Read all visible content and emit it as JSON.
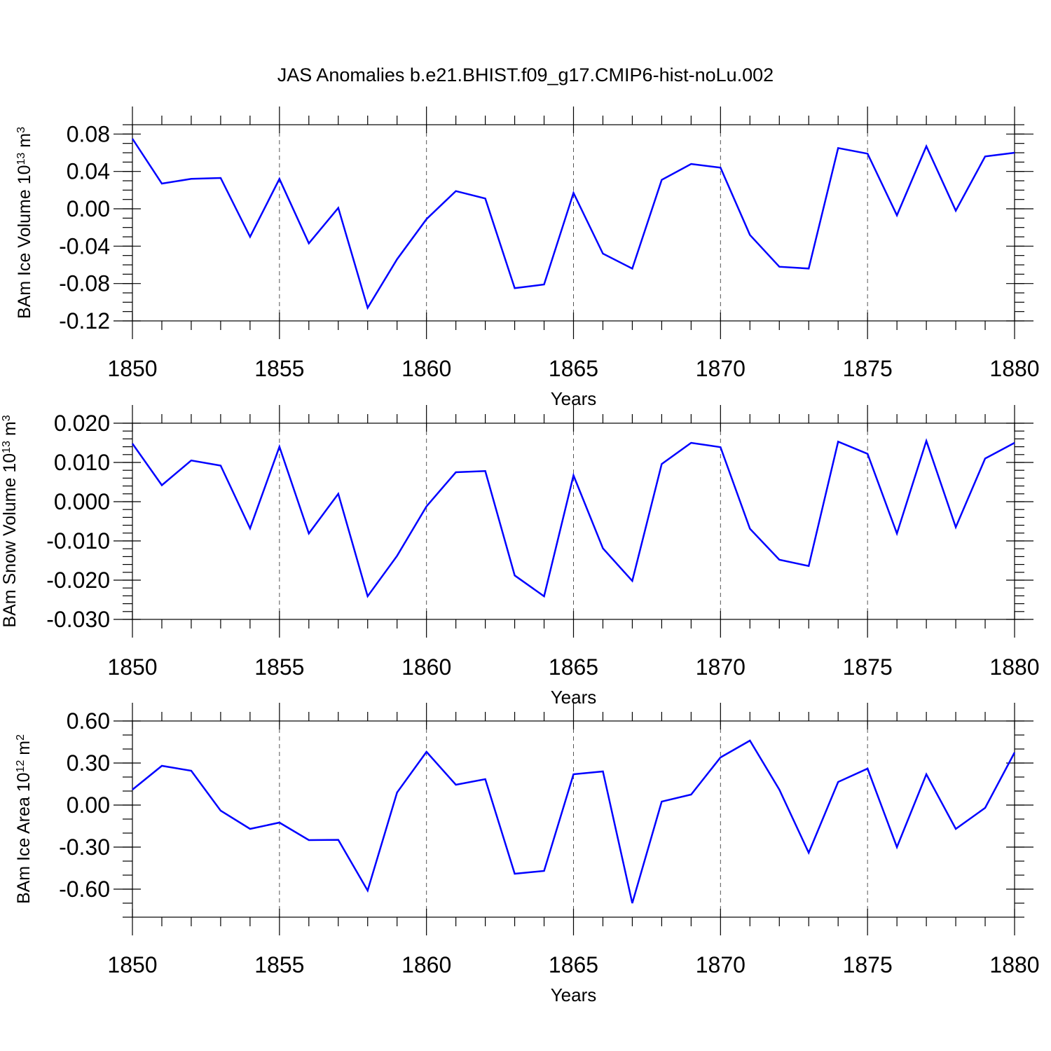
{
  "title": "JAS Anomalies b.e21.BHIST.f09_g17.CMIP6-hist-noLu.002",
  "line_color": "#0000ff",
  "chart_data": [
    {
      "type": "line",
      "ylabel": "BAm Ice Volume 10",
      "ylabel_exp": "13",
      "ylabel_unit": " m",
      "ylabel_unit_exp": "3",
      "xlabel": "Years",
      "xlim": [
        1850,
        1880
      ],
      "ylim": [
        -0.12,
        0.09
      ],
      "x_ticks": [
        1850,
        1855,
        1860,
        1865,
        1870,
        1875,
        1880
      ],
      "x_tick_labels": [
        "1850",
        "1855",
        "1860",
        "1865",
        "1870",
        "1875",
        "1880"
      ],
      "y_ticks": [
        0.08,
        0.04,
        0.0,
        -0.04,
        -0.08,
        -0.12
      ],
      "y_tick_labels": [
        "0.08",
        "0.04",
        "0.00",
        "-0.04",
        "-0.08",
        "-0.12"
      ],
      "y_minor_step": 0.01,
      "series": [
        {
          "name": "BAm Ice Volume",
          "x": [
            1850,
            1851,
            1852,
            1853,
            1854,
            1855,
            1856,
            1857,
            1858,
            1859,
            1860,
            1861,
            1862,
            1863,
            1864,
            1865,
            1866,
            1867,
            1868,
            1869,
            1870,
            1871,
            1872,
            1873,
            1874,
            1875,
            1876,
            1877,
            1878,
            1879,
            1880
          ],
          "values": [
            0.075,
            0.027,
            0.032,
            0.033,
            -0.03,
            0.032,
            -0.037,
            0.001,
            -0.106,
            -0.054,
            -0.011,
            0.019,
            0.011,
            -0.085,
            -0.081,
            0.017,
            -0.048,
            -0.064,
            0.031,
            0.048,
            0.044,
            -0.028,
            -0.062,
            -0.064,
            0.065,
            0.059,
            -0.007,
            0.067,
            -0.002,
            0.056,
            0.06
          ]
        }
      ]
    },
    {
      "type": "line",
      "ylabel": "BAm Snow Volume 10",
      "ylabel_exp": "13",
      "ylabel_unit": " m",
      "ylabel_unit_exp": "3",
      "xlabel": "Years",
      "xlim": [
        1850,
        1880
      ],
      "ylim": [
        -0.03,
        0.02
      ],
      "x_ticks": [
        1850,
        1855,
        1860,
        1865,
        1870,
        1875,
        1880
      ],
      "x_tick_labels": [
        "1850",
        "1855",
        "1860",
        "1865",
        "1870",
        "1875",
        "1880"
      ],
      "y_ticks": [
        0.02,
        0.01,
        0.0,
        -0.01,
        -0.02,
        -0.03
      ],
      "y_tick_labels": [
        "0.020",
        "0.010",
        "0.000",
        "-0.010",
        "-0.020",
        "-0.030"
      ],
      "y_minor_step": 0.002,
      "series": [
        {
          "name": "BAm Snow Volume",
          "x": [
            1850,
            1851,
            1852,
            1853,
            1854,
            1855,
            1856,
            1857,
            1858,
            1859,
            1860,
            1861,
            1862,
            1863,
            1864,
            1865,
            1866,
            1867,
            1868,
            1869,
            1870,
            1871,
            1872,
            1873,
            1874,
            1875,
            1876,
            1877,
            1878,
            1879,
            1880
          ],
          "values": [
            0.0148,
            0.0042,
            0.0105,
            0.0092,
            -0.0068,
            0.014,
            -0.0081,
            0.002,
            -0.0241,
            -0.0138,
            -0.0012,
            0.0075,
            0.0078,
            -0.0188,
            -0.0241,
            0.0067,
            -0.0119,
            -0.0202,
            0.0096,
            0.015,
            0.0139,
            -0.0069,
            -0.0148,
            -0.0164,
            0.0153,
            0.0122,
            -0.0081,
            0.0155,
            -0.0065,
            0.011,
            0.015
          ]
        }
      ]
    },
    {
      "type": "line",
      "ylabel": "BAm Ice Area 10",
      "ylabel_exp": "12",
      "ylabel_unit": " m",
      "ylabel_unit_exp": "2",
      "xlabel": "Years",
      "xlim": [
        1850,
        1880
      ],
      "ylim": [
        -0.8,
        0.6
      ],
      "x_ticks": [
        1850,
        1855,
        1860,
        1865,
        1870,
        1875,
        1880
      ],
      "x_tick_labels": [
        "1850",
        "1855",
        "1860",
        "1865",
        "1870",
        "1875",
        "1880"
      ],
      "y_ticks": [
        0.6,
        0.3,
        0.0,
        -0.3,
        -0.6
      ],
      "y_tick_labels": [
        "0.60",
        "0.30",
        "0.00",
        "-0.30",
        "-0.60"
      ],
      "y_minor_step": 0.1,
      "series": [
        {
          "name": "BAm Ice Area",
          "x": [
            1850,
            1851,
            1852,
            1853,
            1854,
            1855,
            1856,
            1857,
            1858,
            1859,
            1860,
            1861,
            1862,
            1863,
            1864,
            1865,
            1866,
            1867,
            1868,
            1869,
            1870,
            1871,
            1872,
            1873,
            1874,
            1875,
            1876,
            1877,
            1878,
            1879,
            1880
          ],
          "values": [
            0.11,
            0.28,
            0.245,
            -0.04,
            -0.17,
            -0.125,
            -0.25,
            -0.248,
            -0.61,
            0.09,
            0.38,
            0.145,
            0.185,
            -0.49,
            -0.47,
            0.22,
            0.24,
            -0.7,
            0.025,
            0.075,
            0.34,
            0.46,
            0.11,
            -0.34,
            0.165,
            0.26,
            -0.3,
            0.22,
            -0.17,
            -0.02,
            0.375
          ]
        }
      ]
    }
  ]
}
